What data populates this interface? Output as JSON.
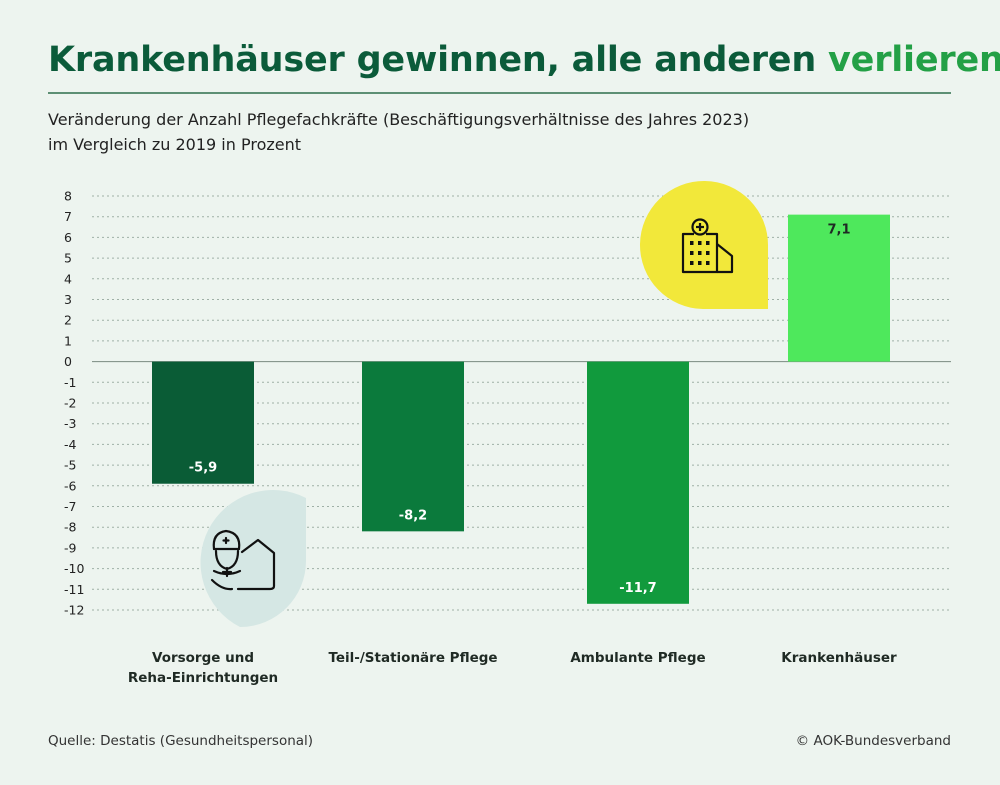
{
  "header": {
    "title_main": "Krankenhäuser gewinnen, alle anderen ",
    "title_accent": "verlieren",
    "subtitle_line1": "Veränderung der Anzahl Pflegefachkräfte (Beschäftigungsverhältnisse des Jahres 2023)",
    "subtitle_line2": "im Vergleich zu 2019 in Prozent"
  },
  "footer": {
    "source": "Quelle: Destatis (Gesundheitspersonal)",
    "copyright": "© AOK-Bundesverband"
  },
  "colors": {
    "title": "#0b5b3a",
    "accent": "#23a046",
    "bars": [
      "#0a5c36",
      "#0b7a3c",
      "#119a3d",
      "#4ee85c"
    ],
    "bubble_yellow": "#f2e83a",
    "bubble_blue": "#d5e7e4"
  },
  "icons": {
    "top_bubble": "hospital-building-icon",
    "bottom_bubble": "nurse-home-care-icon"
  },
  "chart_data": {
    "type": "bar",
    "categories": [
      [
        "Vorsorge und",
        "Reha-Einrichtungen"
      ],
      [
        "Teil-/Stationäre Pflege"
      ],
      [
        "Ambulante Pflege"
      ],
      [
        "Krankenhäuser"
      ]
    ],
    "values": [
      -5.9,
      -8.2,
      -11.7,
      7.1
    ],
    "value_labels": [
      "-5,9",
      "-8,2",
      "-11,7",
      "7,1"
    ],
    "title": "Krankenhäuser gewinnen, alle anderen verlieren",
    "xlabel": "",
    "ylabel": "",
    "ylim": [
      -12,
      8
    ],
    "yticks": [
      8,
      7,
      6,
      5,
      4,
      3,
      2,
      1,
      0,
      -1,
      -2,
      -3,
      -4,
      -5,
      -6,
      -7,
      -8,
      -9,
      -10,
      -11,
      -12
    ],
    "grid": true
  }
}
